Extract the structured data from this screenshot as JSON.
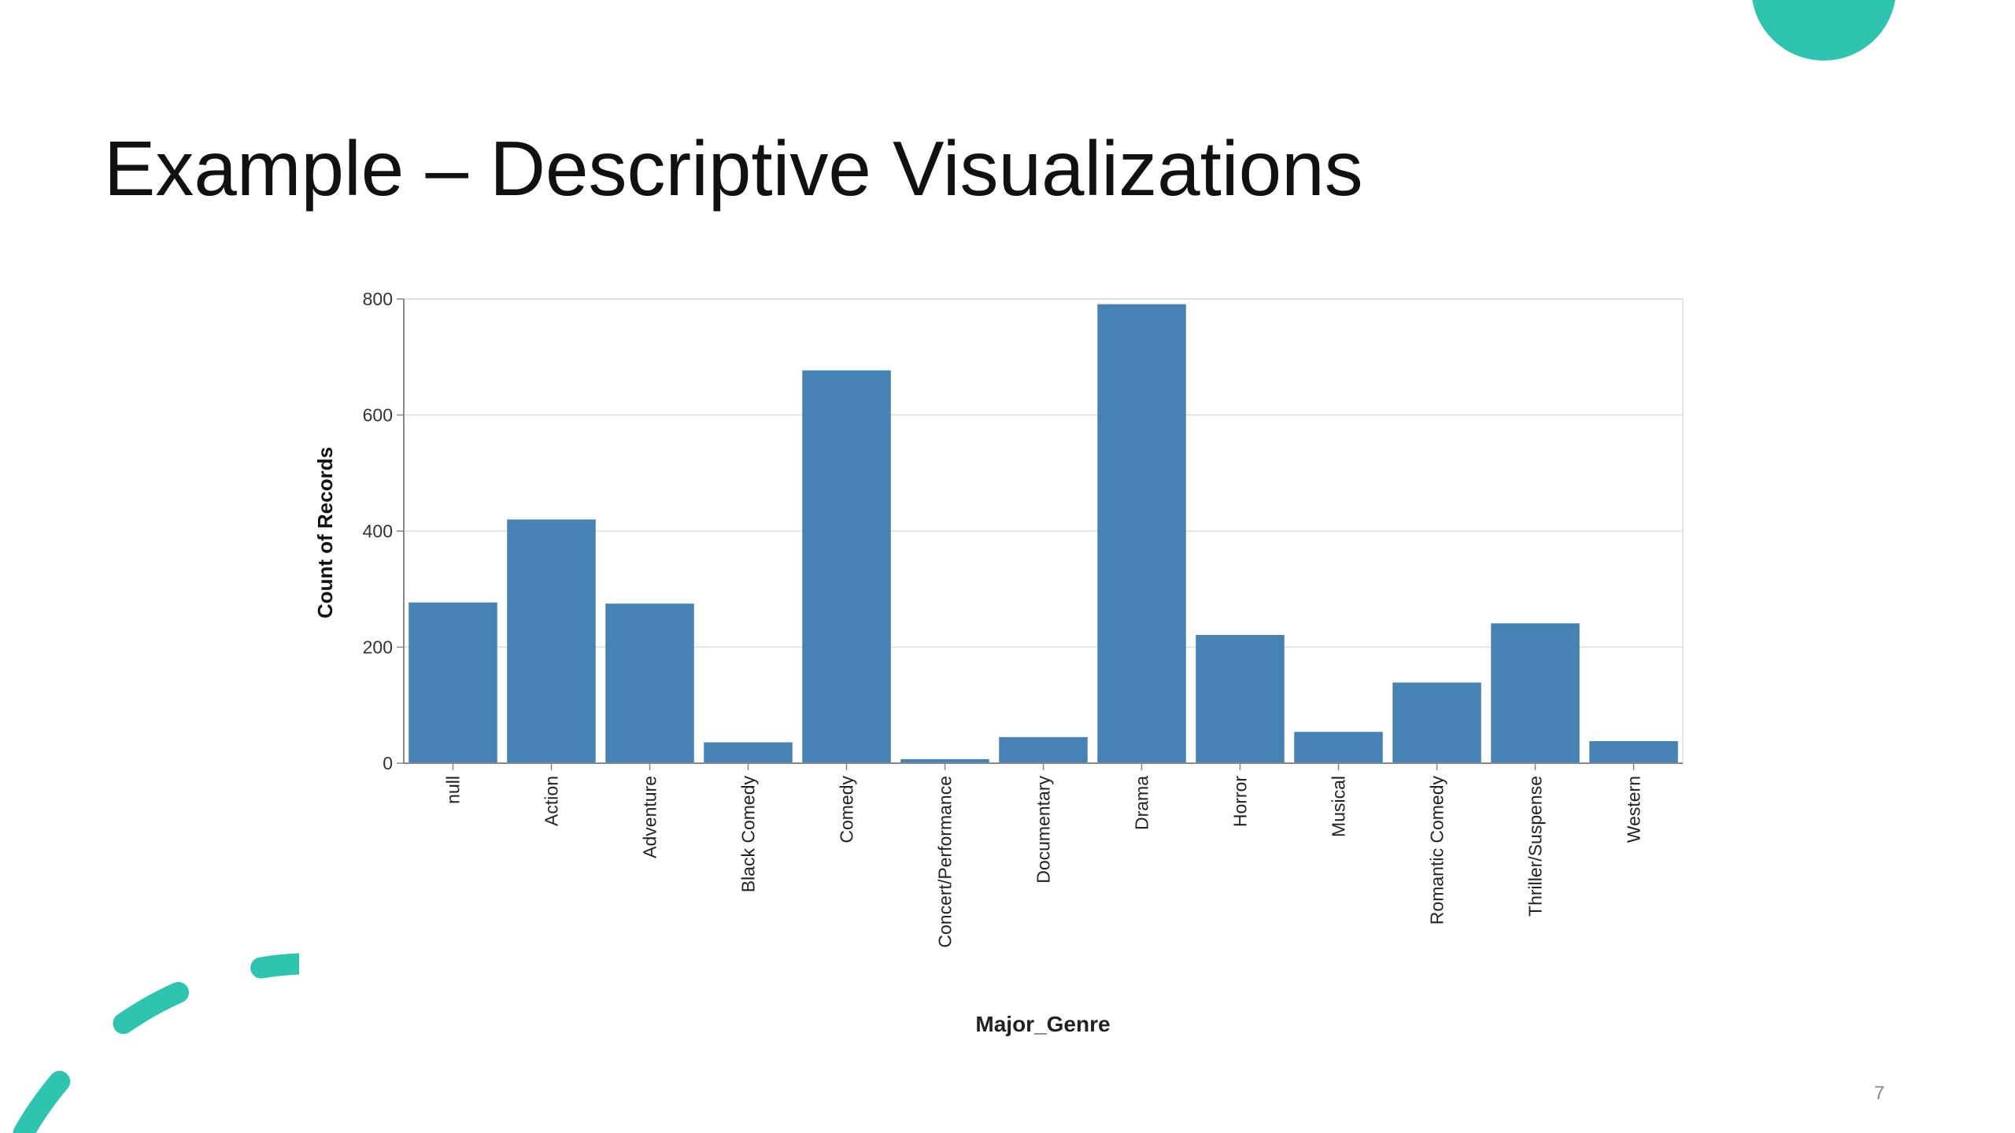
{
  "slide": {
    "title": "Example – Descriptive Visualizations",
    "page_number": "7"
  },
  "chart_data": {
    "type": "bar",
    "x_label": "Major_Genre",
    "y_label": "Count of Records",
    "categories": [
      "null",
      "Action",
      "Adventure",
      "Black Comedy",
      "Comedy",
      "Concert/Performance",
      "Documentary",
      "Drama",
      "Horror",
      "Musical",
      "Romantic Comedy",
      "Thriller/Suspense",
      "Western"
    ],
    "values": [
      277,
      420,
      275,
      36,
      677,
      7,
      45,
      791,
      221,
      54,
      139,
      241,
      38
    ],
    "color": "#4682b4",
    "ylim": [
      0,
      800
    ],
    "yticks": [
      0,
      200,
      400,
      600,
      800
    ],
    "grid": true
  }
}
